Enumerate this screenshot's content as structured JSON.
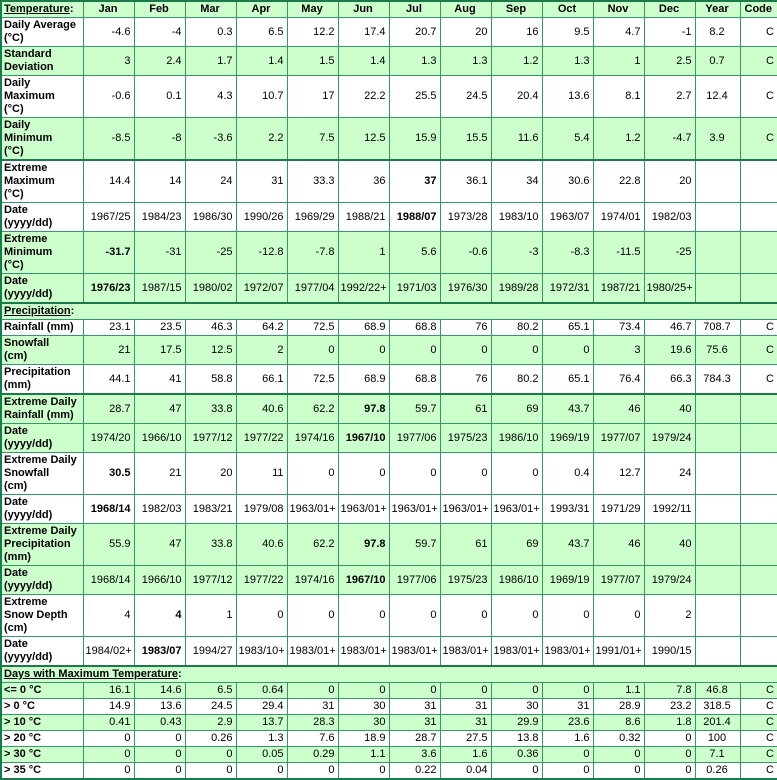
{
  "colors": {
    "row_green": "#ccffcc",
    "row_white": "#ffffff",
    "grid_border": "#339966",
    "section_border": "#1a7a4a",
    "label_blue": "#0000cc",
    "section_purple": "#800080",
    "value_black": "#000000"
  },
  "table": {
    "columns": [
      "Jan",
      "Feb",
      "Mar",
      "Apr",
      "May",
      "Jun",
      "Jul",
      "Aug",
      "Sep",
      "Oct",
      "Nov",
      "Dec",
      "Year",
      "Code"
    ],
    "rows": [
      {
        "name": "temperature-header",
        "type": "header",
        "label": "Temperature:",
        "bg": "g"
      },
      {
        "name": "daily-average",
        "type": "data",
        "bg": "w",
        "label": "Daily Average\n(°C)",
        "values": [
          "-4.6",
          "-4",
          "0.3",
          "6.5",
          "12.2",
          "17.4",
          "20.7",
          "20",
          "16",
          "9.5",
          "4.7",
          "-1",
          "8.2",
          "C"
        ],
        "bold": []
      },
      {
        "name": "standard-deviation",
        "type": "data",
        "bg": "g",
        "label": "Standard\nDeviation",
        "values": [
          "3",
          "2.4",
          "1.7",
          "1.4",
          "1.5",
          "1.4",
          "1.3",
          "1.3",
          "1.2",
          "1.3",
          "1",
          "2.5",
          "0.7",
          "C"
        ],
        "bold": []
      },
      {
        "name": "daily-maximum",
        "type": "data",
        "bg": "w",
        "label": "Daily\nMaximum\n(°C)",
        "values": [
          "-0.6",
          "0.1",
          "4.3",
          "10.7",
          "17",
          "22.2",
          "25.5",
          "24.5",
          "20.4",
          "13.6",
          "8.1",
          "2.7",
          "12.4",
          "C"
        ],
        "bold": []
      },
      {
        "name": "daily-minimum",
        "type": "data",
        "bg": "g",
        "label": "Daily\nMinimum\n(°C)",
        "values": [
          "-8.5",
          "-8",
          "-3.6",
          "2.2",
          "7.5",
          "12.5",
          "15.9",
          "15.5",
          "11.6",
          "5.4",
          "1.2",
          "-4.7",
          "3.9",
          "C"
        ],
        "bold": []
      },
      {
        "name": "extreme-maximum",
        "type": "data",
        "bg": "w",
        "thick_top": true,
        "label": "Extreme\nMaximum\n(°C)",
        "values": [
          "14.4",
          "14",
          "24",
          "31",
          "33.3",
          "36",
          "37",
          "36.1",
          "34",
          "30.6",
          "22.8",
          "20",
          "",
          ""
        ],
        "bold": [
          6
        ]
      },
      {
        "name": "extreme-maximum-date",
        "type": "data",
        "bg": "w",
        "label": "Date\n(yyyy/dd)",
        "values": [
          "1967/25",
          "1984/23",
          "1986/30",
          "1990/26",
          "1969/29",
          "1988/21",
          "1988/07",
          "1973/28",
          "1983/10",
          "1963/07",
          "1974/01",
          "1982/03",
          "",
          ""
        ],
        "bold": [
          6
        ]
      },
      {
        "name": "extreme-minimum",
        "type": "data",
        "bg": "g",
        "label": "Extreme\nMinimum\n(°C)",
        "values": [
          "-31.7",
          "-31",
          "-25",
          "-12.8",
          "-7.8",
          "1",
          "5.6",
          "-0.6",
          "-3",
          "-8.3",
          "-11.5",
          "-25",
          "",
          ""
        ],
        "bold": [
          0
        ]
      },
      {
        "name": "extreme-minimum-date",
        "type": "data",
        "bg": "g",
        "label": "Date\n(yyyy/dd)",
        "values": [
          "1976/23",
          "1987/15",
          "1980/02",
          "1972/07",
          "1977/04",
          "1992/22+",
          "1971/03",
          "1976/30",
          "1989/28",
          "1972/31",
          "1987/21",
          "1980/25+",
          "",
          ""
        ],
        "bold": [
          0
        ]
      },
      {
        "name": "precipitation-section",
        "type": "section",
        "thick_top": true,
        "label": "Precipitation:",
        "bg": "g"
      },
      {
        "name": "rainfall",
        "type": "data",
        "bg": "w",
        "label": "Rainfall (mm)",
        "values": [
          "23.1",
          "23.5",
          "46.3",
          "64.2",
          "72.5",
          "68.9",
          "68.8",
          "76",
          "80.2",
          "65.1",
          "73.4",
          "46.7",
          "708.7",
          "C"
        ],
        "bold": []
      },
      {
        "name": "snowfall",
        "type": "data",
        "bg": "g",
        "label": "Snowfall\n(cm)",
        "values": [
          "21",
          "17.5",
          "12.5",
          "2",
          "0",
          "0",
          "0",
          "0",
          "0",
          "0",
          "3",
          "19.6",
          "75.6",
          "C"
        ],
        "bold": []
      },
      {
        "name": "precipitation",
        "type": "data",
        "bg": "w",
        "label": "Precipitation\n(mm)",
        "values": [
          "44.1",
          "41",
          "58.8",
          "66.1",
          "72.5",
          "68.9",
          "68.8",
          "76",
          "80.2",
          "65.1",
          "76.4",
          "66.3",
          "784.3",
          "C"
        ],
        "bold": []
      },
      {
        "name": "extreme-daily-rainfall",
        "type": "data",
        "bg": "g",
        "thick_top": true,
        "label": "Extreme Daily\nRainfall (mm)",
        "values": [
          "28.7",
          "47",
          "33.8",
          "40.6",
          "62.2",
          "97.8",
          "59.7",
          "61",
          "69",
          "43.7",
          "46",
          "40",
          "",
          ""
        ],
        "bold": [
          5
        ]
      },
      {
        "name": "extreme-daily-rainfall-date",
        "type": "data",
        "bg": "g",
        "label": "Date\n(yyyy/dd)",
        "values": [
          "1974/20",
          "1966/10",
          "1977/12",
          "1977/22",
          "1974/16",
          "1967/10",
          "1977/06",
          "1975/23",
          "1986/10",
          "1969/19",
          "1977/07",
          "1979/24",
          "",
          ""
        ],
        "bold": [
          5
        ]
      },
      {
        "name": "extreme-daily-snowfall",
        "type": "data",
        "bg": "w",
        "label": "Extreme Daily\nSnowfall\n(cm)",
        "values": [
          "30.5",
          "21",
          "20",
          "11",
          "0",
          "0",
          "0",
          "0",
          "0",
          "0.4",
          "12.7",
          "24",
          "",
          ""
        ],
        "bold": [
          0
        ]
      },
      {
        "name": "extreme-daily-snowfall-date",
        "type": "data",
        "bg": "w",
        "label": "Date\n(yyyy/dd)",
        "values": [
          "1968/14",
          "1982/03",
          "1983/21",
          "1979/08",
          "1963/01+",
          "1963/01+",
          "1963/01+",
          "1963/01+",
          "1963/01+",
          "1993/31",
          "1971/29",
          "1992/11",
          "",
          ""
        ],
        "bold": [
          0
        ]
      },
      {
        "name": "extreme-daily-precipitation",
        "type": "data",
        "bg": "g",
        "label": "Extreme Daily\nPrecipitation\n(mm)",
        "values": [
          "55.9",
          "47",
          "33.8",
          "40.6",
          "62.2",
          "97.8",
          "59.7",
          "61",
          "69",
          "43.7",
          "46",
          "40",
          "",
          ""
        ],
        "bold": [
          5
        ]
      },
      {
        "name": "extreme-daily-precipitation-date",
        "type": "data",
        "bg": "g",
        "label": "Date\n(yyyy/dd)",
        "values": [
          "1968/14",
          "1966/10",
          "1977/12",
          "1977/22",
          "1974/16",
          "1967/10",
          "1977/06",
          "1975/23",
          "1986/10",
          "1969/19",
          "1977/07",
          "1979/24",
          "",
          ""
        ],
        "bold": [
          5
        ]
      },
      {
        "name": "extreme-snow-depth",
        "type": "data",
        "bg": "w",
        "label": "Extreme\nSnow Depth\n(cm)",
        "values": [
          "4",
          "4",
          "1",
          "0",
          "0",
          "0",
          "0",
          "0",
          "0",
          "0",
          "0",
          "2",
          "",
          ""
        ],
        "bold": [
          1
        ]
      },
      {
        "name": "extreme-snow-depth-date",
        "type": "data",
        "bg": "w",
        "label": "Date\n(yyyy/dd)",
        "values": [
          "1984/02+",
          "1983/07",
          "1994/27",
          "1983/10+",
          "1983/01+",
          "1983/01+",
          "1983/01+",
          "1983/01+",
          "1983/01+",
          "1983/01+",
          "1991/01+",
          "1990/15",
          "",
          ""
        ],
        "bold": [
          1
        ]
      },
      {
        "name": "days-max-temp-section",
        "type": "section",
        "thick_top": true,
        "label": "Days with Maximum Temperature:",
        "bg": "g"
      },
      {
        "name": "days-lte-0c",
        "type": "data",
        "bg": "g",
        "label": "<= 0 °C",
        "values": [
          "16.1",
          "14.6",
          "6.5",
          "0.64",
          "0",
          "0",
          "0",
          "0",
          "0",
          "0",
          "1.1",
          "7.8",
          "46.8",
          "C"
        ],
        "bold": []
      },
      {
        "name": "days-gt-0c",
        "type": "data",
        "bg": "w",
        "label": "> 0 °C",
        "values": [
          "14.9",
          "13.6",
          "24.5",
          "29.4",
          "31",
          "30",
          "31",
          "31",
          "30",
          "31",
          "28.9",
          "23.2",
          "318.5",
          "C"
        ],
        "bold": []
      },
      {
        "name": "days-gt-10c",
        "type": "data",
        "bg": "g",
        "label": "> 10 °C",
        "values": [
          "0.41",
          "0.43",
          "2.9",
          "13.7",
          "28.3",
          "30",
          "31",
          "31",
          "29.9",
          "23.6",
          "8.6",
          "1.8",
          "201.4",
          "C"
        ],
        "bold": []
      },
      {
        "name": "days-gt-20c",
        "type": "data",
        "bg": "w",
        "label": "> 20 °C",
        "values": [
          "0",
          "0",
          "0.26",
          "1.3",
          "7.6",
          "18.9",
          "28.7",
          "27.5",
          "13.8",
          "1.6",
          "0.32",
          "0",
          "100",
          "C"
        ],
        "bold": []
      },
      {
        "name": "days-gt-30c",
        "type": "data",
        "bg": "g",
        "label": "> 30 °C",
        "values": [
          "0",
          "0",
          "0",
          "0.05",
          "0.29",
          "1.1",
          "3.6",
          "1.6",
          "0.36",
          "0",
          "0",
          "0",
          "7.1",
          "C"
        ],
        "bold": []
      },
      {
        "name": "days-gt-35c",
        "type": "data",
        "bg": "w",
        "label": "> 35 °C",
        "values": [
          "0",
          "0",
          "0",
          "0",
          "0",
          "0",
          "0.22",
          "0.04",
          "0",
          "0",
          "0",
          "0",
          "0.26",
          "C"
        ],
        "bold": []
      }
    ]
  }
}
